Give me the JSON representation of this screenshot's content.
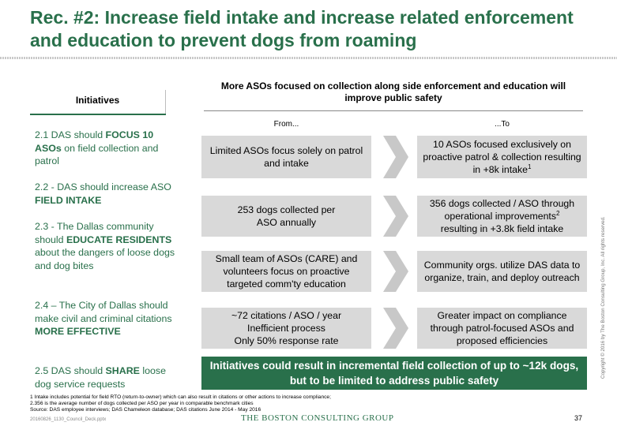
{
  "title": "Rec. #2: Increase field intake and increase related enforcement and education to prevent dogs from roaming",
  "initiatives_header": "Initiatives",
  "right_header": "More ASOs focused on collection along side enforcement and education will improve public safety",
  "from_label": "From...",
  "to_label": "...To",
  "initiatives": [
    {
      "pre": "2.1 DAS should ",
      "bold": "FOCUS 10 ASOs",
      "post": " on field collection and patrol"
    },
    {
      "pre": "2.2 - DAS should increase ASO ",
      "bold": "FIELD INTAKE",
      "post": ""
    },
    {
      "pre": "2.3 - The Dallas community should ",
      "bold": "EDUCATE RESIDENTS",
      "post": " about the dangers of loose dogs and dog bites"
    },
    {
      "pre": "2.4 – The City of Dallas should make civil and criminal citations ",
      "bold": "MORE EFFECTIVE",
      "post": ""
    },
    {
      "pre": "2.5 DAS should ",
      "bold": "SHARE",
      "post": " loose dog service requests"
    }
  ],
  "rows": [
    {
      "from": "Limited ASOs focus solely on patrol and intake",
      "to": "10 ASOs focused exclusively on proactive patrol & collection resulting in +8k intake",
      "to_sup": "1"
    },
    {
      "from": "253 dogs collected per ASO annually",
      "to_a": "356 dogs collected / ASO through operational improvements",
      "to_sup": "2",
      "to_b": "resulting in +3.8k field intake"
    },
    {
      "from": "Small team of ASOs (CARE) and volunteers focus on proactive targeted comm'ty education",
      "to": "Community orgs. utilize DAS data to organize, train, and deploy outreach"
    },
    {
      "from_lines": [
        "~72 citations / ASO / year",
        "Inefficient process",
        "Only 50% response rate"
      ],
      "to": "Greater impact on compliance through patrol-focused ASOs and proposed efficiencies"
    }
  ],
  "banner": "Initiatives could result in incremental field collection of up to ~12k dogs, but to be limited to address public safety",
  "footnotes": [
    "1 Intake includes potential for field RTO (return-to-owner) which can also result in citations or other actions to increase compliance;",
    "2.356 is the average number of dogs collected per ASO per year in comparable benchmark cities",
    "Source: DAS employee interviews; DAS Chameleon database; DAS citations June 2014 - May 2016"
  ],
  "file_name": "20160826_1130_Council_Deck.pptx",
  "logo": "THE BOSTON CONSULTING GROUP",
  "page_number": "37",
  "copyright": "Copyright © 2016 by The Boston Consulting Group, Inc. All rights reserved.",
  "colors": {
    "accent": "#29704b",
    "box": "#d9d9d9",
    "chevron": "#c8c8c8"
  }
}
